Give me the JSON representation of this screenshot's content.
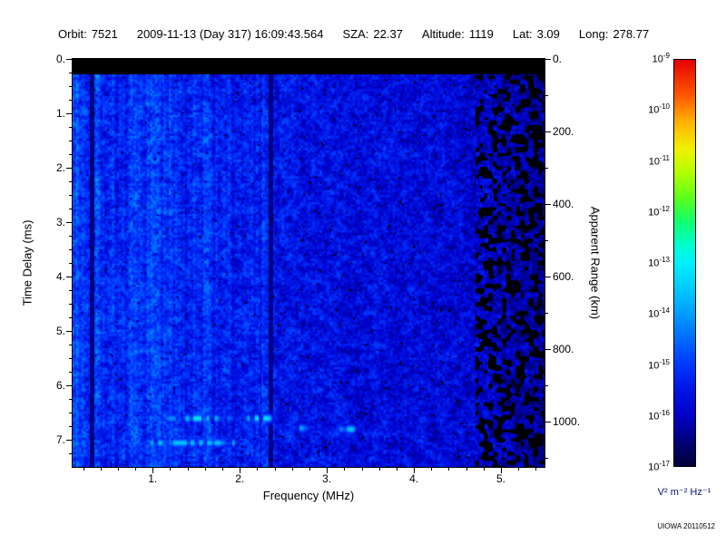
{
  "header": {
    "fields": [
      {
        "label": "Orbit:",
        "value": "7521"
      },
      {
        "label": "",
        "value": "2009-11-13 (Day 317) 16:09:43.564"
      },
      {
        "label": "SZA:",
        "value": "22.37"
      },
      {
        "label": "Altitude:",
        "value": "1119"
      },
      {
        "label": "Lat:",
        "value": "3.09"
      },
      {
        "label": "Long:",
        "value": "278.77"
      }
    ]
  },
  "credit": "UIOWA 20110512",
  "chart_data": {
    "type": "heatmap",
    "subtype": "radar-sounder-ionogram-spectrogram",
    "xlabel": "Frequency (MHz)",
    "ylabel": "Time Delay (ms)",
    "y2label": "Apparent Range (km)",
    "x_range_mhz": [
      0.08,
      5.5
    ],
    "y_range_ms": [
      0,
      7.5
    ],
    "x_major_ticks": [
      1,
      2,
      3,
      4,
      5
    ],
    "x_tick_labels": [
      "1.",
      "2.",
      "3.",
      "4.",
      "5."
    ],
    "x_minor_step_mhz": 0.2,
    "y_major_ticks": [
      0,
      1,
      2,
      3,
      4,
      5,
      6,
      7
    ],
    "y_tick_labels": [
      "0.",
      "1.",
      "2.",
      "3.",
      "4.",
      "5.",
      "6.",
      "7."
    ],
    "y_minor_step_ms": 0.25,
    "y2_major_ticks_km": [
      0,
      200,
      400,
      600,
      800,
      1000
    ],
    "y2_tick_labels": [
      "0.",
      "200.",
      "400.",
      "600.",
      "800.",
      "1000."
    ],
    "y2_minor_step_km": 100,
    "range_per_ms_km": 150,
    "grid": false,
    "colorbar": {
      "units": "V² m⁻² Hz⁻¹",
      "scale": "log10",
      "exponent_ticks": [
        -9,
        -10,
        -11,
        -12,
        -13,
        -14,
        -15,
        -16,
        -17
      ],
      "value_top": "1e-9",
      "value_bottom": "1e-17",
      "stops": [
        {
          "t": 0.0,
          "c": "#000038"
        },
        {
          "t": 0.05,
          "c": "#00006e"
        },
        {
          "t": 0.125,
          "c": "#0000c8"
        },
        {
          "t": 0.19,
          "c": "#0016e6"
        },
        {
          "t": 0.25,
          "c": "#0038ff"
        },
        {
          "t": 0.32,
          "c": "#0070ff"
        },
        {
          "t": 0.375,
          "c": "#009dff"
        },
        {
          "t": 0.44,
          "c": "#00ccff"
        },
        {
          "t": 0.5,
          "c": "#00f0ff"
        },
        {
          "t": 0.545,
          "c": "#00ffcc"
        },
        {
          "t": 0.6,
          "c": "#10ff70"
        },
        {
          "t": 0.655,
          "c": "#55ff20"
        },
        {
          "t": 0.72,
          "c": "#b0ff00"
        },
        {
          "t": 0.78,
          "c": "#f0f000"
        },
        {
          "t": 0.845,
          "c": "#ffb400"
        },
        {
          "t": 0.91,
          "c": "#ff5a00"
        },
        {
          "t": 1.0,
          "c": "#e60000"
        }
      ]
    },
    "features": {
      "top_saturated_band_ms": [
        0,
        0.27
      ],
      "background_level_log10": -15.6,
      "noise_brighter_below_mhz": 2.3,
      "dark_vertical_lines_mhz": [
        0.3,
        2.35
      ],
      "dark_right_edge_above_mhz": 4.7,
      "echo_traces": [
        {
          "f_mhz": [
            0.78,
            2.55
          ],
          "delay_ms": 6.6,
          "level_log10": -13.2
        },
        {
          "f_mhz": [
            0.9,
            2.15
          ],
          "delay_ms": 7.05,
          "level_log10": -13.6
        },
        {
          "f_mhz": [
            2.95,
            3.4
          ],
          "delay_ms": 6.8,
          "level_log10": -13.5
        },
        {
          "f_mhz": [
            2.6,
            2.8
          ],
          "delay_ms": 6.78,
          "level_log10": -13.8
        }
      ]
    }
  }
}
